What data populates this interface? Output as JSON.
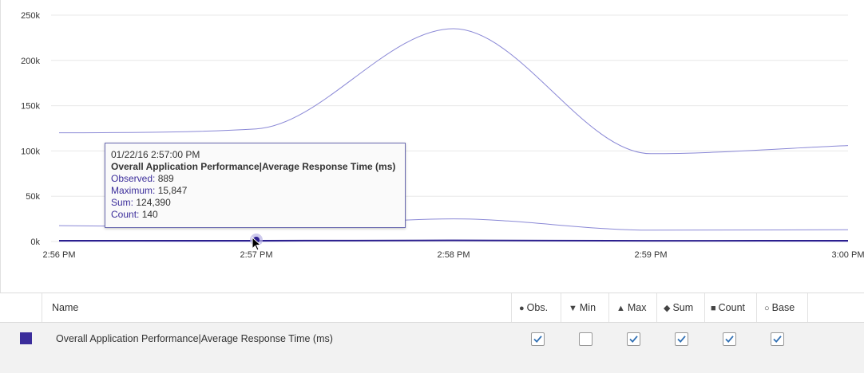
{
  "chart_data": {
    "type": "line",
    "x_ticks": [
      "2:56 PM",
      "2:57 PM",
      "2:58 PM",
      "2:59 PM",
      "3:00 PM"
    ],
    "y_ticks": [
      "250k",
      "200k",
      "150k",
      "100k",
      "50k",
      "0k"
    ],
    "ylim": [
      0,
      250000
    ],
    "grid": "horizontal",
    "series": [
      {
        "x": [
          "2:56 PM",
          "2:57 PM",
          "2:58 PM",
          "2:59 PM",
          "3:00 PM"
        ],
        "values": [
          120000,
          124390,
          235000,
          97000,
          106000
        ]
      },
      {
        "x": [
          "2:56 PM",
          "2:57 PM",
          "2:58 PM",
          "2:59 PM",
          "3:00 PM"
        ],
        "values": [
          17500,
          15847,
          25000,
          12500,
          13000
        ]
      },
      {
        "x": [
          "2:56 PM",
          "2:57 PM",
          "2:58 PM",
          "2:59 PM",
          "3:00 PM"
        ],
        "values": [
          200,
          140,
          1500,
          500,
          150
        ]
      },
      {
        "x": [
          "2:56 PM",
          "2:57 PM",
          "2:58 PM",
          "2:59 PM",
          "3:00 PM"
        ],
        "values": [
          900,
          889,
          1200,
          800,
          900
        ]
      }
    ],
    "highlight_x": "2:57 PM",
    "colors": {
      "line": "#8a88d6",
      "obs_line": "#2b1f8f",
      "grid": "#e8e8e8"
    }
  },
  "tooltip": {
    "datetime": "01/22/16 2:57:00 PM",
    "title": "Overall Application Performance|Average Response Time (ms)",
    "observed_label": "Observed:",
    "observed_value": "889",
    "maximum_label": "Maximum:",
    "maximum_value": "15,847",
    "sum_label": "Sum:",
    "sum_value": "124,390",
    "count_label": "Count:",
    "count_value": "140"
  },
  "table": {
    "name_header": "Name",
    "columns": [
      {
        "glyph": "●",
        "label": "Obs."
      },
      {
        "glyph": "▼",
        "label": "Min"
      },
      {
        "glyph": "▲",
        "label": "Max"
      },
      {
        "glyph": "◆",
        "label": "Sum"
      },
      {
        "glyph": "■",
        "label": "Count"
      },
      {
        "glyph": "○",
        "label": "Base"
      }
    ],
    "rows": [
      {
        "name": "Overall Application Performance|Average Response Time (ms)",
        "color": "#3b2d9b",
        "checks": [
          true,
          false,
          true,
          true,
          true,
          true
        ]
      }
    ]
  }
}
